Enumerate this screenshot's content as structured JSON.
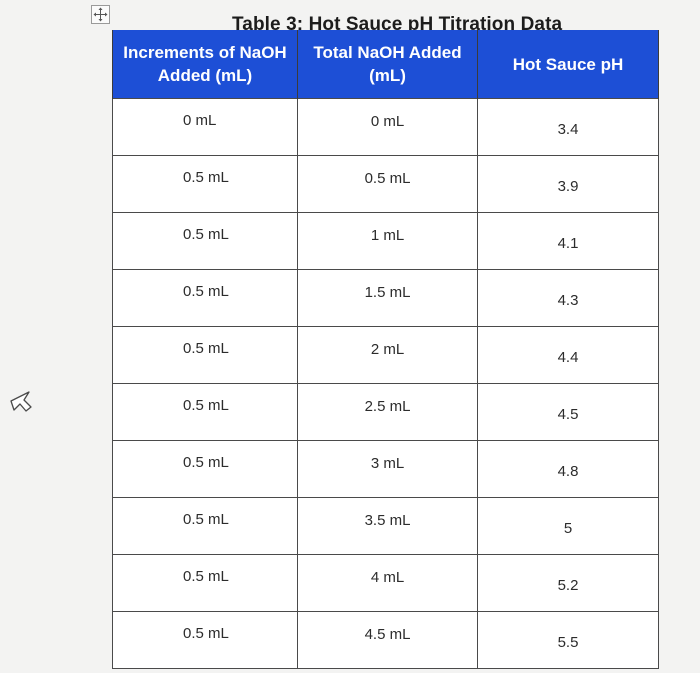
{
  "title": "Table 3: Hot Sauce pH Titration Data",
  "headers": [
    "Increments of NaOH Added (mL)",
    "Total NaOH Added (mL)",
    "Hot Sauce pH"
  ],
  "rows": [
    {
      "increment": "0 mL",
      "total": "0 mL",
      "ph": "3.4"
    },
    {
      "increment": "0.5 mL",
      "total": "0.5 mL",
      "ph": "3.9"
    },
    {
      "increment": "0.5 mL",
      "total": "1 mL",
      "ph": "4.1"
    },
    {
      "increment": "0.5 mL",
      "total": "1.5 mL",
      "ph": "4.3"
    },
    {
      "increment": "0.5 mL",
      "total": "2 mL",
      "ph": "4.4"
    },
    {
      "increment": "0.5 mL",
      "total": "2.5 mL",
      "ph": "4.5"
    },
    {
      "increment": "0.5 mL",
      "total": "3 mL",
      "ph": "4.8"
    },
    {
      "increment": "0.5 mL",
      "total": "3.5 mL",
      "ph": "5"
    },
    {
      "increment": "0.5 mL",
      "total": "4 mL",
      "ph": "5.2"
    },
    {
      "increment": "0.5 mL",
      "total": "4.5 mL",
      "ph": "5.5"
    }
  ],
  "icons": {
    "table_handle": "move-arrows-icon",
    "cursor": "mouse-pointer-icon"
  },
  "colors": {
    "header_background": "#1d4fd6",
    "header_text": "#ffffff"
  }
}
